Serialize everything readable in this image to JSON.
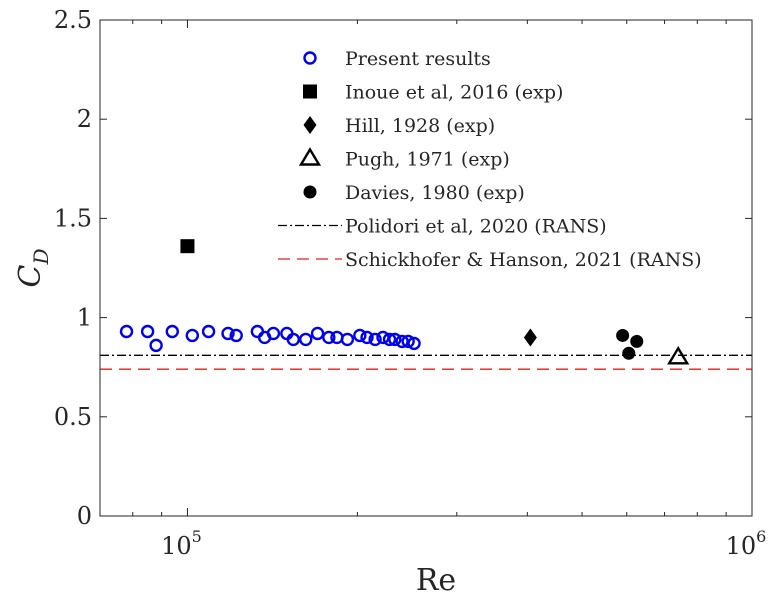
{
  "chart_data": {
    "type": "scatter",
    "x_scale": "log",
    "xlim": [
      70000,
      1000000
    ],
    "ylim": [
      0,
      2.5
    ],
    "xlabel": "Re",
    "ylabel": "C",
    "ylabel_subscript": "D",
    "x_ticks": [
      {
        "value": 100000,
        "base": "10",
        "exp": "5"
      },
      {
        "value": 1000000,
        "base": "10",
        "exp": "6"
      }
    ],
    "y_ticks": [
      {
        "value": 0,
        "label": "0"
      },
      {
        "value": 0.5,
        "label": "0.5"
      },
      {
        "value": 1,
        "label": "1"
      },
      {
        "value": 1.5,
        "label": "1.5"
      },
      {
        "value": 2,
        "label": "2"
      },
      {
        "value": 2.5,
        "label": "2.5"
      }
    ],
    "grid": false,
    "legend_position": "top-center",
    "series": [
      {
        "name": "Present results",
        "marker": "open-circle",
        "color": "#0000ee",
        "points": [
          [
            78000,
            0.93
          ],
          [
            85000,
            0.93
          ],
          [
            88000,
            0.86
          ],
          [
            94000,
            0.93
          ],
          [
            102000,
            0.91
          ],
          [
            109000,
            0.93
          ],
          [
            118000,
            0.92
          ],
          [
            122000,
            0.91
          ],
          [
            133000,
            0.93
          ],
          [
            137000,
            0.9
          ],
          [
            142000,
            0.92
          ],
          [
            150000,
            0.92
          ],
          [
            154000,
            0.89
          ],
          [
            162000,
            0.89
          ],
          [
            170000,
            0.92
          ],
          [
            178000,
            0.9
          ],
          [
            184000,
            0.9
          ],
          [
            192000,
            0.89
          ],
          [
            202000,
            0.91
          ],
          [
            208000,
            0.9
          ],
          [
            215000,
            0.89
          ],
          [
            222000,
            0.9
          ],
          [
            228000,
            0.89
          ],
          [
            233000,
            0.89
          ],
          [
            240000,
            0.88
          ],
          [
            246000,
            0.88
          ],
          [
            252000,
            0.87
          ]
        ]
      },
      {
        "name": "Inoue et al, 2016 (exp)",
        "marker": "filled-square",
        "color": "#000000",
        "points": [
          [
            100000,
            1.36
          ]
        ]
      },
      {
        "name": "Hill, 1928 (exp)",
        "marker": "filled-diamond",
        "color": "#000000",
        "points": [
          [
            405000,
            0.9
          ]
        ]
      },
      {
        "name": "Pugh, 1971 (exp)",
        "marker": "open-triangle",
        "color": "#000000",
        "points": [
          [
            740000,
            0.8
          ]
        ]
      },
      {
        "name": "Davies, 1980 (exp)",
        "marker": "filled-circle",
        "color": "#000000",
        "points": [
          [
            590000,
            0.91
          ],
          [
            605000,
            0.82
          ],
          [
            625000,
            0.88
          ]
        ]
      },
      {
        "name": "Polidori et al, 2020 (RANS)",
        "marker": "dash-dot-line",
        "color": "#000000",
        "y_constant": 0.81
      },
      {
        "name": "Schickhofer & Hanson, 2021 (RANS)",
        "marker": "dashed-line",
        "color": "#dd2222",
        "y_constant": 0.74
      }
    ]
  }
}
